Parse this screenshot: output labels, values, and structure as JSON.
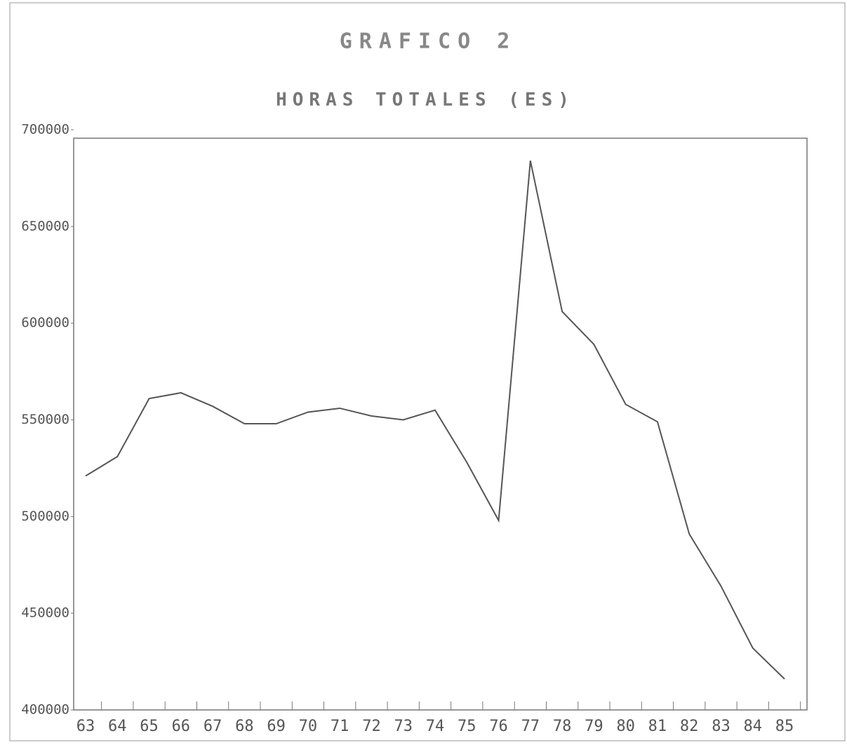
{
  "chart_data": {
    "type": "line",
    "title": "GRAFICO 2",
    "subtitle": "HORAS TOTALES (ES)",
    "categories": [
      "63",
      "64",
      "65",
      "66",
      "67",
      "68",
      "69",
      "70",
      "71",
      "72",
      "73",
      "74",
      "75",
      "76",
      "77",
      "78",
      "79",
      "80",
      "81",
      "82",
      "83",
      "84",
      "85"
    ],
    "values": [
      521000,
      531000,
      561000,
      564000,
      557000,
      548000,
      548000,
      554000,
      556000,
      552000,
      550000,
      555000,
      528000,
      498000,
      684000,
      606000,
      589000,
      558000,
      549000,
      491000,
      464000,
      432000,
      416000
    ],
    "color": "#555555",
    "ylim": [
      400000,
      700000
    ],
    "yticks": [
      400000,
      450000,
      500000,
      550000,
      600000,
      650000,
      700000
    ],
    "grid": false
  }
}
